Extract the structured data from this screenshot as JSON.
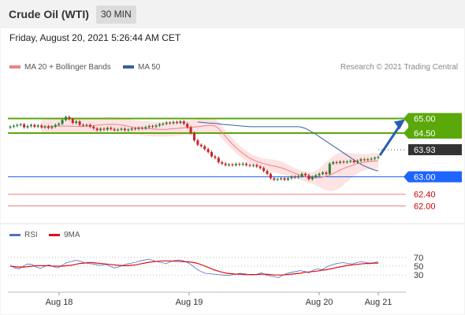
{
  "header": {
    "title": "Crude Oil (WTI)",
    "timeframe": "30 MIN"
  },
  "date_text": "Friday, August 20, 2021 5:26:44 AM CET",
  "legend": {
    "ma20_label": "MA 20 + Bollinger Bands",
    "ma50_label": "MA 50",
    "credit": "Research © 2021 Trading Central",
    "rsi_label": "RSI",
    "ma9_label": "9MA"
  },
  "colors": {
    "ma20": "#f08080",
    "ma50": "#3a5fa0",
    "resistance": "#5aa80a",
    "support": "#1e64ff",
    "target_arrow": "#2a5db0",
    "rsi": "#4a72c8",
    "rsi_ma": "#e01010",
    "up": "#2e7d32",
    "down": "#c62828",
    "band": "#fbe2e2"
  },
  "chart_data": [
    {
      "type": "candlestick",
      "x_ticks": [
        "Aug 18",
        "Aug 19",
        "Aug 20",
        "Aug 21"
      ],
      "ylim": [
        61.5,
        66.5
      ],
      "close": [
        64.72,
        64.75,
        64.78,
        64.8,
        64.7,
        64.74,
        64.78,
        64.72,
        64.76,
        64.7,
        64.73,
        64.68,
        64.72,
        64.78,
        64.82,
        64.95,
        65.05,
        64.98,
        64.85,
        64.9,
        64.78,
        64.76,
        64.78,
        64.72,
        64.66,
        64.6,
        64.65,
        64.62,
        64.68,
        64.64,
        64.6,
        64.62,
        64.65,
        64.6,
        64.62,
        64.66,
        64.64,
        64.68,
        64.66,
        64.7,
        64.74,
        64.72,
        64.76,
        64.8,
        64.82,
        64.86,
        64.84,
        64.88,
        64.85,
        64.9,
        64.82,
        64.7,
        64.5,
        64.25,
        64.1,
        64.05,
        63.95,
        63.85,
        63.7,
        63.65,
        63.5,
        63.45,
        63.4,
        63.42,
        63.4,
        63.44,
        63.42,
        63.45,
        63.4,
        63.38,
        63.4,
        63.35,
        63.3,
        63.2,
        63.1,
        62.95,
        62.9,
        62.92,
        62.95,
        62.9,
        62.95,
        63.0,
        62.98,
        63.02,
        63.1,
        63.05,
        62.92,
        63.0,
        63.05,
        63.1,
        63.15,
        63.1,
        63.45,
        63.5,
        63.48,
        63.52,
        63.5,
        63.52,
        63.55,
        63.5,
        63.55,
        63.6,
        63.58,
        63.6,
        63.62,
        63.65,
        63.68
      ],
      "ma20": [
        64.7,
        64.71,
        64.72,
        64.73,
        64.74,
        64.74,
        64.74,
        64.74,
        64.74,
        64.73,
        64.73,
        64.73,
        64.73,
        64.74,
        64.74,
        64.75,
        64.77,
        64.78,
        64.79,
        64.8,
        64.8,
        64.8,
        64.79,
        64.78,
        64.76,
        64.73,
        64.71,
        64.69,
        64.68,
        64.67,
        64.66,
        64.65,
        64.64,
        64.63,
        64.63,
        64.63,
        64.63,
        64.64,
        64.65,
        64.66,
        64.67,
        64.68,
        64.69,
        64.7,
        64.71,
        64.72,
        64.73,
        64.75,
        64.76,
        64.77,
        64.74,
        64.66,
        64.53,
        64.38,
        64.25,
        64.12,
        64.0,
        63.9,
        63.8,
        63.72,
        63.64,
        63.58,
        63.53,
        63.49,
        63.45,
        63.42,
        63.39,
        63.37,
        63.34,
        63.31,
        63.27,
        63.22,
        63.17,
        63.12,
        63.08,
        63.04,
        63.0,
        62.97,
        62.96,
        62.96,
        62.97,
        62.99,
        63.02,
        63.06,
        63.11,
        63.17,
        63.23,
        63.28,
        63.33,
        63.37,
        63.41,
        63.45,
        63.48,
        63.5,
        63.52,
        63.53,
        63.54,
        63.55
      ],
      "ma50": [
        64.88,
        64.87,
        64.86,
        64.85,
        64.84,
        64.83,
        64.82,
        64.8,
        64.79,
        64.78,
        64.77,
        64.76,
        64.75,
        64.74,
        64.73,
        64.72,
        64.72,
        64.72,
        64.72,
        64.72,
        64.72,
        64.72,
        64.72,
        64.72,
        64.72,
        64.72,
        64.72,
        64.72,
        64.72,
        64.72,
        64.7,
        64.66,
        64.6,
        64.53,
        64.46,
        64.38,
        64.3,
        64.22,
        64.14,
        64.06,
        63.98,
        63.9,
        63.82,
        63.74,
        63.66,
        63.58,
        63.5,
        63.43,
        63.37,
        63.32,
        63.27,
        63.23,
        63.2
      ],
      "bb_width": [
        0.25,
        0.25,
        0.24,
        0.23,
        0.22,
        0.22,
        0.21,
        0.2,
        0.19,
        0.18,
        0.18,
        0.17,
        0.17,
        0.17,
        0.17,
        0.17,
        0.18,
        0.2,
        0.21,
        0.22,
        0.22,
        0.22,
        0.21,
        0.2,
        0.19,
        0.18,
        0.17,
        0.17,
        0.17,
        0.18,
        0.2,
        0.25,
        0.32,
        0.4,
        0.48,
        0.55,
        0.6,
        0.62,
        0.6,
        0.56,
        0.5,
        0.44,
        0.38,
        0.33,
        0.3,
        0.28,
        0.27,
        0.27,
        0.27,
        0.27
      ],
      "levels": [
        {
          "label": "65.00",
          "value": 65.0,
          "kind": "resistance"
        },
        {
          "label": "64.50",
          "value": 64.5,
          "kind": "resistance"
        },
        {
          "label": "63.93",
          "value": 63.93,
          "kind": "last"
        },
        {
          "label": "63.00",
          "value": 63.0,
          "kind": "support"
        },
        {
          "label": "62.40",
          "value": 62.4,
          "kind": "minor"
        },
        {
          "label": "62.00",
          "value": 62.0,
          "kind": "minor"
        }
      ]
    },
    {
      "type": "line",
      "title": "RSI",
      "ylim": [
        0,
        100
      ],
      "y_ticks": [
        30,
        50,
        70
      ],
      "series": [
        {
          "name": "RSI",
          "values": [
            52,
            46,
            44,
            50,
            55,
            54,
            48,
            45,
            50,
            53,
            49,
            46,
            52,
            58,
            60,
            63,
            62,
            58,
            56,
            55,
            53,
            52,
            54,
            50,
            46,
            48,
            52,
            55,
            57,
            59,
            62,
            64,
            66,
            63,
            60,
            58,
            56,
            60,
            63,
            64,
            62,
            58,
            52,
            44,
            38,
            34,
            33,
            32,
            31,
            30,
            29,
            30,
            32,
            34,
            33,
            31,
            30,
            32,
            35,
            30,
            28,
            26,
            24,
            30,
            34,
            36,
            38,
            40,
            38,
            35,
            41,
            44,
            42,
            48,
            52,
            55,
            57,
            58,
            56,
            55,
            58,
            60,
            59,
            57,
            58,
            60
          ]
        },
        {
          "name": "9MA",
          "values": [
            50,
            49,
            48,
            48,
            49,
            50,
            51,
            51,
            51,
            51,
            50,
            50,
            50,
            51,
            52,
            54,
            56,
            57,
            58,
            58,
            57,
            56,
            55,
            54,
            53,
            52,
            51,
            51,
            52,
            53,
            55,
            57,
            59,
            60,
            61,
            62,
            62,
            62,
            61,
            61,
            60,
            60,
            59,
            57,
            54,
            50,
            46,
            42,
            39,
            36,
            34,
            33,
            32,
            32,
            31,
            31,
            31,
            31,
            32,
            32,
            31,
            30,
            30,
            30,
            31,
            32,
            33,
            34,
            36,
            37,
            38,
            39,
            41,
            42,
            44,
            46,
            48,
            50,
            52,
            53,
            54,
            55,
            56,
            56,
            57,
            57
          ]
        }
      ]
    }
  ]
}
